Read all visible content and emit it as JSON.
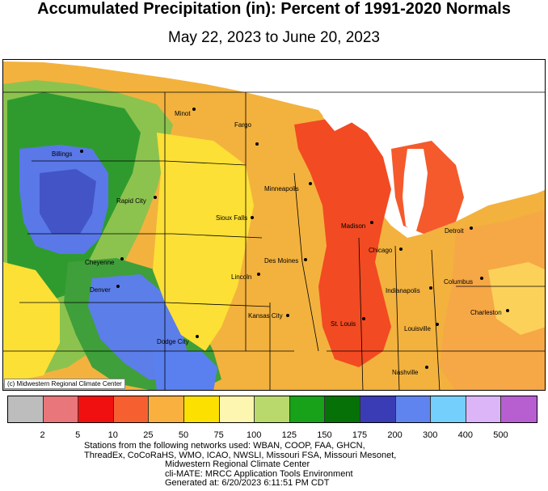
{
  "title": "Accumulated Precipitation (in): Percent of 1991-2020 Normals",
  "subtitle": "May 22, 2023 to June 20, 2023",
  "credit": "(c) Midwestern Regional Climate Center",
  "cities": [
    "Minot",
    "Fargo",
    "Billings",
    "Minneapolis",
    "Rapid City",
    "Sioux Falls",
    "Madison",
    "Detroit",
    "Cheyenne",
    "Des Moines",
    "Chicago",
    "Lincoln",
    "Columbus",
    "Denver",
    "Indianapolis",
    "Kansas City",
    "Charleston",
    "St. Louis",
    "Louisville",
    "Dodge City",
    "Nashville"
  ],
  "legend": {
    "colors": [
      "#bdbdbd",
      "#e8767a",
      "#f01010",
      "#f66030",
      "#f9b03e",
      "#fbe000",
      "#fdf6b0",
      "#b9d96c",
      "#17a21a",
      "#067106",
      "#3a3cb5",
      "#5f84ef",
      "#75cffc",
      "#dcb5f8",
      "#b75fd1"
    ],
    "ticks": [
      "2",
      "5",
      "10",
      "25",
      "50",
      "75",
      "100",
      "125",
      "150",
      "175",
      "200",
      "300",
      "400",
      "500"
    ]
  },
  "footer": [
    "Stations from the following networks used: WBAN, COOP, FAA, GHCN,",
    "ThreadEx, CoCoRaHS, WMO, ICAO, NWSLI, Missouri FSA, Missouri Mesonet,",
    "Midwestern Regional Climate Center",
    "cli-MATE: MRCC Application Tools Environment",
    "Generated at: 6/20/2023 6:11:51 PM CDT"
  ]
}
